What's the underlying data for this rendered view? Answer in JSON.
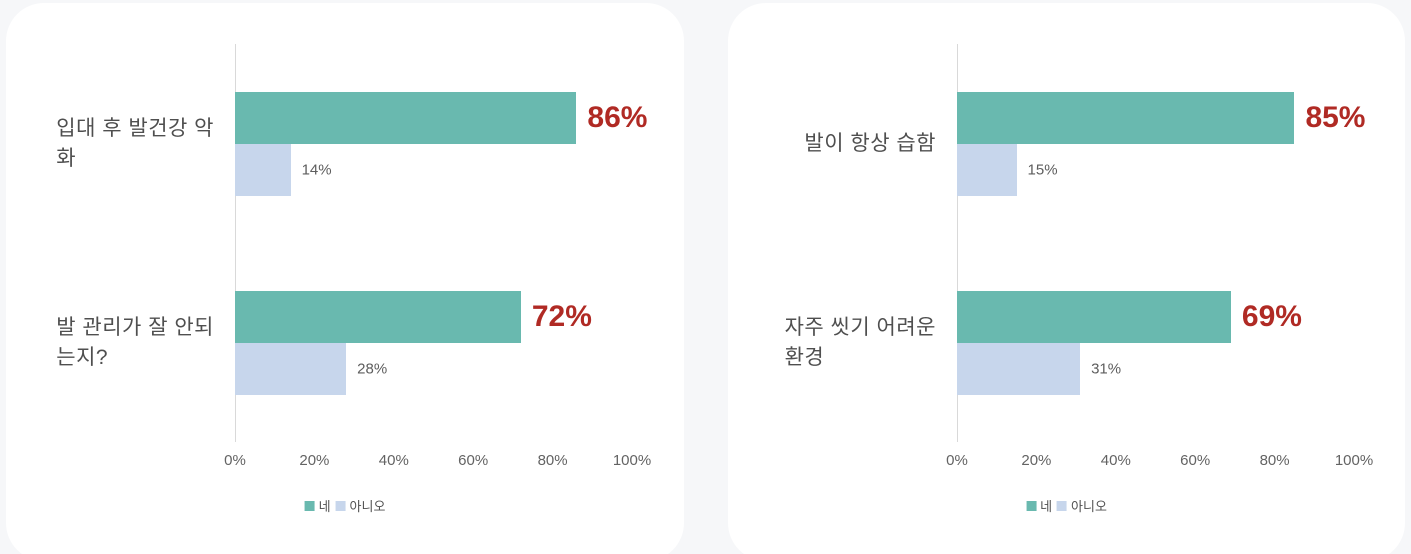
{
  "page": {
    "background_color": "#f6f7f9",
    "card_color": "#ffffff"
  },
  "colors": {
    "yes_bar": "#69b9af",
    "no_bar": "#c7d6ec",
    "emphasis_value_label": "#b02a24",
    "muted_value_label": "#5d5d5d",
    "category_text": "#4f4f4f",
    "tick_text": "#636363",
    "axis_line": "#d9d9d9"
  },
  "chart_data": [
    {
      "type": "bar",
      "orientation": "horizontal",
      "categories": [
        "입대 후 발건강 악\n화",
        "발 관리가 잘 안되\n는지?"
      ],
      "series": [
        {
          "name": "네",
          "values": [
            86,
            72
          ],
          "labels": [
            "86%",
            "72%"
          ],
          "color": "#69b9af",
          "label_style": "emphasis"
        },
        {
          "name": "아니오",
          "values": [
            14,
            28
          ],
          "labels": [
            "14%",
            "28%"
          ],
          "color": "#c7d6ec",
          "label_style": "muted"
        }
      ],
      "xlim": [
        0,
        100
      ],
      "x_ticks": [
        "0%",
        "20%",
        "40%",
        "60%",
        "80%",
        "100%"
      ],
      "grid": false,
      "legend_position": "bottom-center"
    },
    {
      "type": "bar",
      "orientation": "horizontal",
      "categories": [
        "발이 항상 습함",
        "자주 씻기 어려운\n환경"
      ],
      "series": [
        {
          "name": "네",
          "values": [
            85,
            69
          ],
          "labels": [
            "85%",
            "69%"
          ],
          "color": "#69b9af",
          "label_style": "emphasis"
        },
        {
          "name": "아니오",
          "values": [
            15,
            31
          ],
          "labels": [
            "15%",
            "31%"
          ],
          "color": "#c7d6ec",
          "label_style": "muted"
        }
      ],
      "xlim": [
        0,
        100
      ],
      "x_ticks": [
        "0%",
        "20%",
        "40%",
        "60%",
        "80%",
        "100%"
      ],
      "grid": false,
      "legend_position": "bottom-center"
    }
  ]
}
